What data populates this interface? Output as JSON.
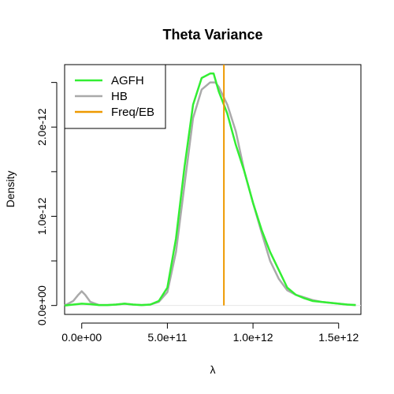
{
  "chart_data": {
    "type": "line",
    "title": "Theta Variance",
    "xlabel": "λ",
    "ylabel": "Density",
    "xlim": [
      -100000000000.0,
      1630000000000.0
    ],
    "ylim": [
      -1e-13,
      2.7e-12
    ],
    "x_ticks": [
      {
        "value": 0,
        "label": "0.0e+00"
      },
      {
        "value": 500000000000.0,
        "label": "5.0e+11"
      },
      {
        "value": 1000000000000.0,
        "label": "1.0e+12"
      },
      {
        "value": 1500000000000.0,
        "label": "1.5e+12"
      }
    ],
    "y_ticks": [
      {
        "value": 0,
        "label": "0.0e+00"
      },
      {
        "value": 1e-12,
        "label": "1.0e-12"
      },
      {
        "value": 2e-12,
        "label": "2.0e-12"
      }
    ],
    "legend": {
      "position": "top-left",
      "entries": [
        {
          "label": "AGFH",
          "color": "#33ee33"
        },
        {
          "label": "HB",
          "color": "#aaaaaa"
        },
        {
          "label": "Freq/EB",
          "color": "#ee9900"
        }
      ]
    },
    "series": [
      {
        "name": "AGFH",
        "color": "#33ee33",
        "x": [
          -100000000000.0,
          -50000000000.0,
          0,
          50000000000.0,
          100000000000.0,
          150000000000.0,
          200000000000.0,
          250000000000.0,
          300000000000.0,
          350000000000.0,
          400000000000.0,
          450000000000.0,
          500000000000.0,
          550000000000.0,
          600000000000.0,
          650000000000.0,
          700000000000.0,
          750000000000.0,
          770000000000.0,
          800000000000.0,
          850000000000.0,
          900000000000.0,
          950000000000.0,
          1000000000000.0,
          1050000000000.0,
          1100000000000.0,
          1150000000000.0,
          1200000000000.0,
          1250000000000.0,
          1300000000000.0,
          1350000000000.0,
          1400000000000.0,
          1450000000000.0,
          1500000000000.0,
          1550000000000.0,
          1600000000000.0
        ],
        "y": [
          0,
          1e-14,
          2e-14,
          1.5e-14,
          5e-15,
          5e-15,
          1e-14,
          2e-14,
          1e-14,
          5e-15,
          1e-14,
          5e-14,
          2e-13,
          7.5e-13,
          1.55e-12,
          2.25e-12,
          2.55e-12,
          2.6e-12,
          2.6e-12,
          2.4e-12,
          2.15e-12,
          1.8e-12,
          1.5e-12,
          1.15e-12,
          8.5e-13,
          6e-13,
          4e-13,
          2e-13,
          1.2e-13,
          8e-14,
          5e-14,
          4e-14,
          3e-14,
          2e-14,
          1e-14,
          5e-15
        ]
      },
      {
        "name": "HB",
        "color": "#aaaaaa",
        "x": [
          -100000000000.0,
          -50000000000.0,
          -20000000000.0,
          0,
          20000000000.0,
          50000000000.0,
          100000000000.0,
          150000000000.0,
          200000000000.0,
          250000000000.0,
          300000000000.0,
          350000000000.0,
          400000000000.0,
          450000000000.0,
          500000000000.0,
          550000000000.0,
          600000000000.0,
          650000000000.0,
          700000000000.0,
          750000000000.0,
          780000000000.0,
          800000000000.0,
          850000000000.0,
          900000000000.0,
          950000000000.0,
          1000000000000.0,
          1050000000000.0,
          1100000000000.0,
          1150000000000.0,
          1200000000000.0,
          1250000000000.0,
          1300000000000.0,
          1350000000000.0,
          1400000000000.0,
          1450000000000.0,
          1500000000000.0,
          1550000000000.0,
          1600000000000.0
        ],
        "y": [
          0,
          5e-14,
          1.2e-13,
          1.6e-13,
          1.2e-13,
          4e-14,
          5e-15,
          5e-15,
          1e-14,
          2e-14,
          1e-14,
          5e-15,
          1e-14,
          4e-14,
          1.5e-13,
          6e-13,
          1.35e-12,
          2.1e-12,
          2.42e-12,
          2.5e-12,
          2.5e-12,
          2.45e-12,
          2.25e-12,
          1.95e-12,
          1.5e-12,
          1.15e-12,
          8.2e-13,
          5e-13,
          3e-13,
          1.7e-13,
          1.2e-13,
          9e-14,
          6e-14,
          4e-14,
          3e-14,
          2e-14,
          1e-14,
          5e-15
        ]
      }
    ],
    "vlines": [
      {
        "name": "Freq/EB",
        "x": 830000000000.0,
        "color": "#ee9900"
      }
    ]
  }
}
